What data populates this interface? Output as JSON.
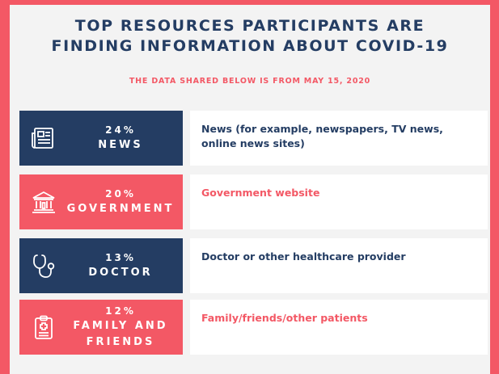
{
  "title_line1": "TOP RESOURCES PARTICIPANTS ARE",
  "title_line2": "FINDING INFORMATION ABOUT COVID-19",
  "subtitle": "THE DATA SHARED BELOW IS FROM MAY 15, 2020",
  "colors": {
    "navy": "#243d63",
    "coral": "#f35865",
    "panel": "#f3f3f3",
    "white": "#ffffff"
  },
  "chart_data": {
    "type": "table",
    "title": "TOP RESOURCES PARTICIPANTS ARE FINDING INFORMATION ABOUT COVID-19",
    "subtitle": "THE DATA SHARED BELOW IS FROM MAY 15, 2020",
    "rows": [
      {
        "percent": "24%",
        "value": 24,
        "label_lines": [
          "NEWS"
        ],
        "description_lines": [
          "News (for example, newspapers, TV news,",
          "online news sites)"
        ],
        "icon": "newspaper-icon",
        "color": "navy"
      },
      {
        "percent": "20%",
        "value": 20,
        "label_lines": [
          "GOVERNMENT"
        ],
        "description_lines": [
          "Government website"
        ],
        "icon": "government-building-icon",
        "color": "coral"
      },
      {
        "percent": "13%",
        "value": 13,
        "label_lines": [
          "DOCTOR"
        ],
        "description_lines": [
          "Doctor or other healthcare provider"
        ],
        "icon": "stethoscope-icon",
        "color": "navy"
      },
      {
        "percent": "12%",
        "value": 12,
        "label_lines": [
          "FAMILY AND",
          "FRIENDS"
        ],
        "description_lines": [
          "Family/friends/other patients"
        ],
        "icon": "clipboard-icon",
        "color": "coral"
      }
    ]
  }
}
